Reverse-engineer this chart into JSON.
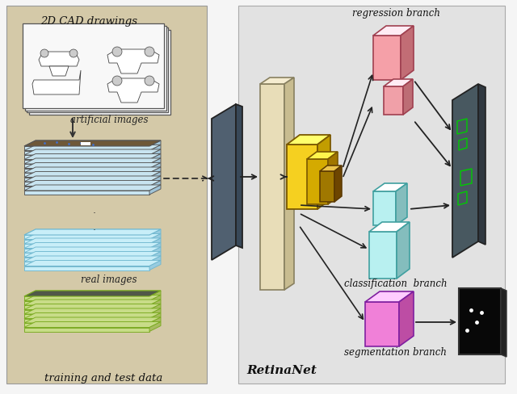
{
  "bg_color": "#f5f5f5",
  "left_panel_color": "#d4c9a8",
  "right_panel_color": "#e0e0e0",
  "label_cad": "2D CAD drawings",
  "label_artificial": "artificial images",
  "label_real": "real images",
  "label_bottom": "training and test data",
  "label_retinanet": "RetinaNet",
  "label_regression": "regression branch",
  "label_classification": "classification  branch",
  "label_segmentation": "segmentation branch",
  "col_yellow_light": "#f5d020",
  "col_yellow_mid": "#d4aa00",
  "col_yellow_dark": "#a07800",
  "col_pink_light": "#f5a0a8",
  "col_pink_mid": "#e07080",
  "col_cyan_light": "#b8f0f0",
  "col_cyan_mid": "#80d0d0",
  "col_cyan_dark": "#50a8a8",
  "col_magenta_light": "#f080d8",
  "col_magenta_mid": "#c050b0",
  "col_beige_light": "#e8ddb8",
  "col_beige_mid": "#c8bc90",
  "col_beige_dark": "#a89c70",
  "art_top": "#7a6040",
  "cyan_top": "#c8ecf8",
  "real_top": "#606858",
  "real_edge": "#a8c840"
}
